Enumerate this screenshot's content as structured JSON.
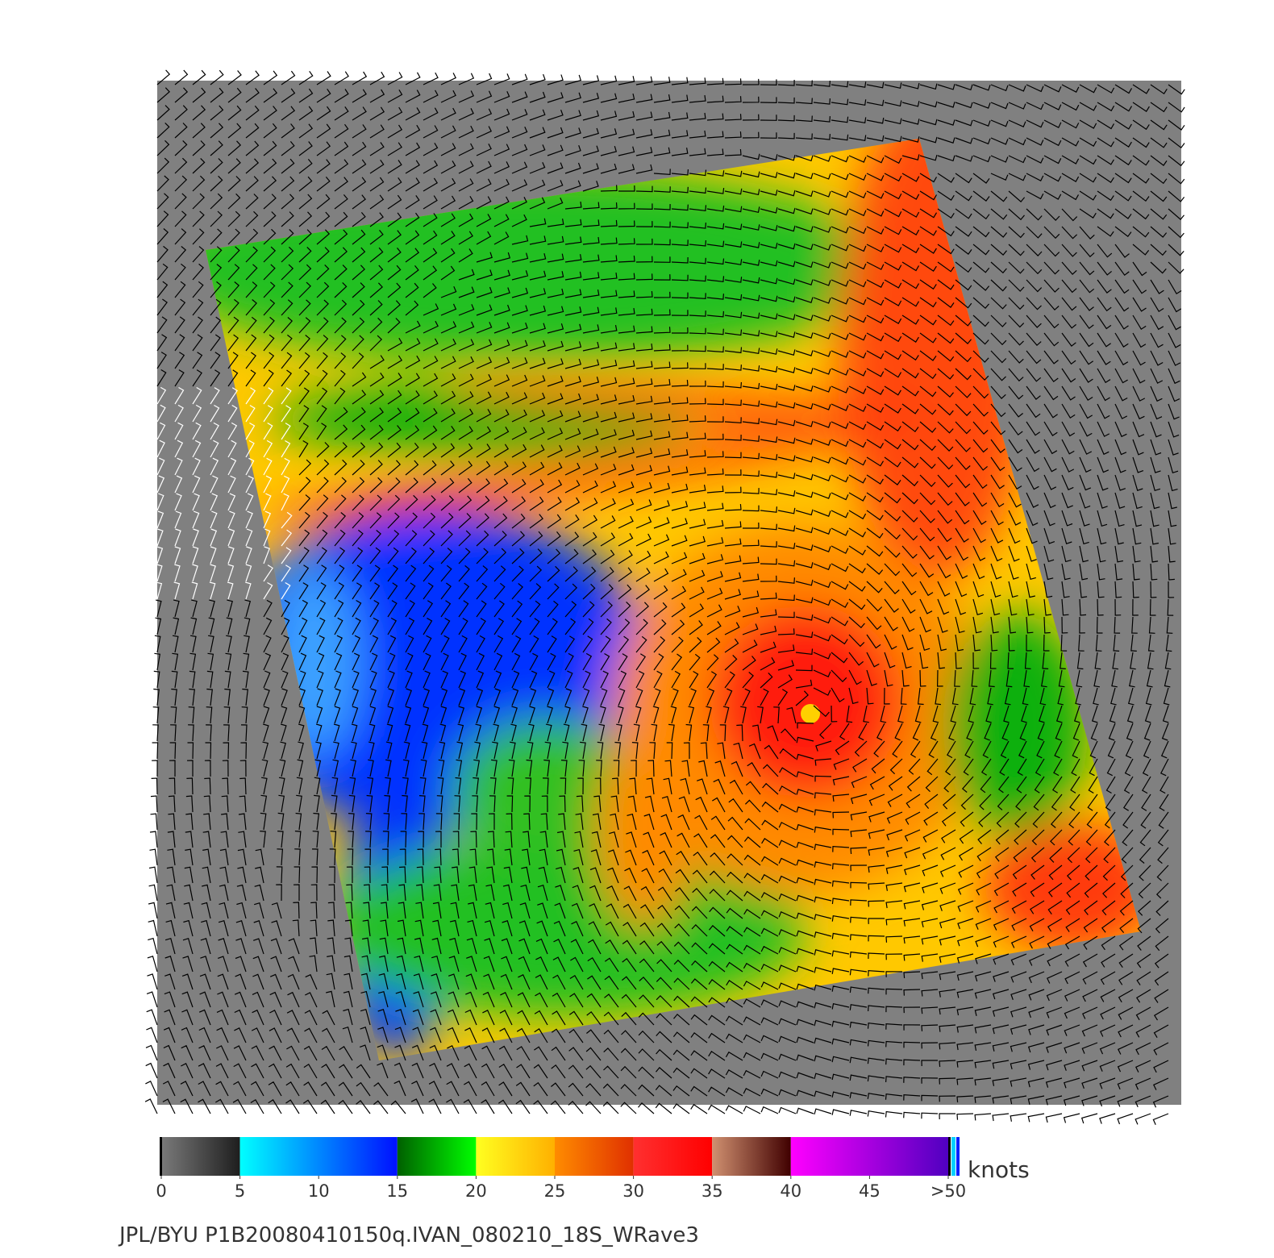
{
  "legend": {
    "lim": [
      0,
      50
    ],
    "ticks": [
      0,
      5,
      10,
      15,
      20,
      25,
      30,
      35,
      40,
      45,
      {
        "value": 50,
        "label": ">50"
      }
    ],
    "unit": "knots",
    "segments": [
      {
        "from": 0,
        "to": 5,
        "colors": [
          "#7a7a7a",
          "#1e1e1e"
        ]
      },
      {
        "from": 5,
        "to": 15,
        "colors": [
          "#00ffff",
          "#0010ff"
        ]
      },
      {
        "from": 15,
        "to": 20,
        "colors": [
          "#006000",
          "#00ff00"
        ]
      },
      {
        "from": 20,
        "to": 25,
        "colors": [
          "#ffff20",
          "#ffb000"
        ]
      },
      {
        "from": 25,
        "to": 30,
        "colors": [
          "#ff8c00",
          "#e03000"
        ]
      },
      {
        "from": 30,
        "to": 35,
        "colors": [
          "#ff3030",
          "#ff0000"
        ]
      },
      {
        "from": 35,
        "to": 40,
        "colors": [
          "#d09070",
          "#400000"
        ]
      },
      {
        "from": 40,
        "to": 50,
        "colors": [
          "#ff00ff",
          "#5000c0"
        ]
      }
    ]
  },
  "caption": "JPL/BYU  P1B20080410150q.IVAN_080210_18S_WRave3"
}
